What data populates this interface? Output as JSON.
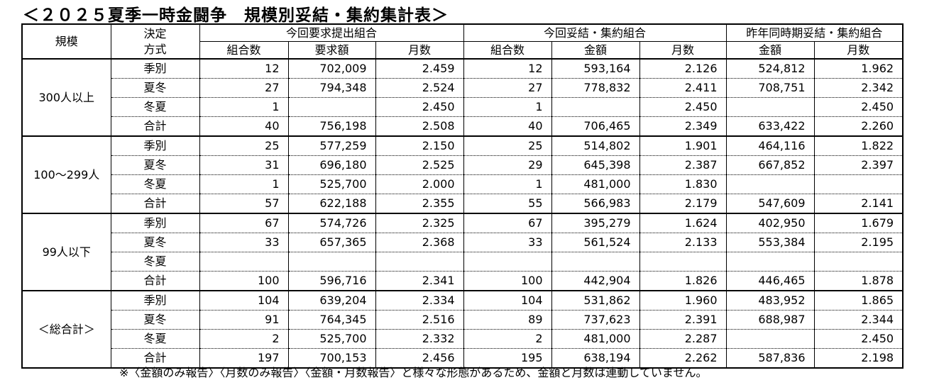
{
  "title": "＜２０２５夏季一時金闘争　規模別妥結・集約集計表＞",
  "header": {
    "size": "規模",
    "method": [
      "決定",
      "方式"
    ],
    "groups": [
      "今回要求提出組合",
      "今回妥結・集約組合",
      "昨年同時期妥結・集約組合"
    ],
    "columns": [
      "組合数",
      "要求額",
      "月数",
      "組合数",
      "金額",
      "月数",
      "金額",
      "月数"
    ]
  },
  "table": {
    "groups": [
      {
        "name": "300人以上",
        "rows": [
          {
            "method": "季別",
            "values": [
              "12",
              "702,009",
              "2.459",
              "12",
              "593,164",
              "2.126",
              "524,812",
              "1.962"
            ]
          },
          {
            "method": "夏冬",
            "values": [
              "27",
              "794,348",
              "2.524",
              "27",
              "778,832",
              "2.411",
              "708,751",
              "2.342"
            ]
          },
          {
            "method": "冬夏",
            "values": [
              "1",
              null,
              "2.450",
              "1",
              null,
              "2.450",
              null,
              "2.450"
            ]
          },
          {
            "method": "合計",
            "values": [
              "40",
              "756,198",
              "2.508",
              "40",
              "706,465",
              "2.349",
              "633,422",
              "2.260"
            ]
          }
        ]
      },
      {
        "name": "100～299人",
        "rows": [
          {
            "method": "季別",
            "values": [
              "25",
              "577,259",
              "2.150",
              "25",
              "514,802",
              "1.901",
              "464,116",
              "1.822"
            ]
          },
          {
            "method": "夏冬",
            "values": [
              "31",
              "696,180",
              "2.525",
              "29",
              "645,398",
              "2.387",
              "667,852",
              "2.397"
            ]
          },
          {
            "method": "冬夏",
            "values": [
              "1",
              "525,700",
              "2.000",
              "1",
              "481,000",
              "1.830",
              null,
              null
            ]
          },
          {
            "method": "合計",
            "values": [
              "57",
              "622,188",
              "2.355",
              "55",
              "566,983",
              "2.179",
              "547,609",
              "2.141"
            ]
          }
        ]
      },
      {
        "name": "99人以下",
        "rows": [
          {
            "method": "季別",
            "values": [
              "67",
              "574,726",
              "2.325",
              "67",
              "395,279",
              "1.624",
              "402,950",
              "1.679"
            ]
          },
          {
            "method": "夏冬",
            "values": [
              "33",
              "657,365",
              "2.368",
              "33",
              "561,524",
              "2.133",
              "553,384",
              "2.195"
            ]
          },
          {
            "method": "冬夏",
            "values": [
              null,
              null,
              null,
              null,
              null,
              null,
              null,
              null
            ]
          },
          {
            "method": "合計",
            "values": [
              "100",
              "596,716",
              "2.341",
              "100",
              "442,904",
              "1.826",
              "446,465",
              "1.878"
            ]
          }
        ]
      },
      {
        "name": "＜総合計＞",
        "rows": [
          {
            "method": "季別",
            "values": [
              "104",
              "639,204",
              "2.334",
              "104",
              "531,862",
              "1.960",
              "483,952",
              "1.865"
            ]
          },
          {
            "method": "夏冬",
            "values": [
              "91",
              "764,345",
              "2.516",
              "89",
              "737,623",
              "2.391",
              "688,987",
              "2.344"
            ]
          },
          {
            "method": "冬夏",
            "values": [
              "2",
              "525,700",
              "2.332",
              "2",
              "481,000",
              "2.287",
              null,
              "2.450"
            ]
          },
          {
            "method": "合計",
            "values": [
              "197",
              "700,153",
              "2.456",
              "195",
              "638,194",
              "2.262",
              "587,836",
              "2.198"
            ]
          }
        ]
      }
    ]
  },
  "footnote": "※〈金額のみ報告〉〈月数のみ報告〉〈金額・月数報告〉と様々な形態があるため、金額と月数は連動していません。"
}
